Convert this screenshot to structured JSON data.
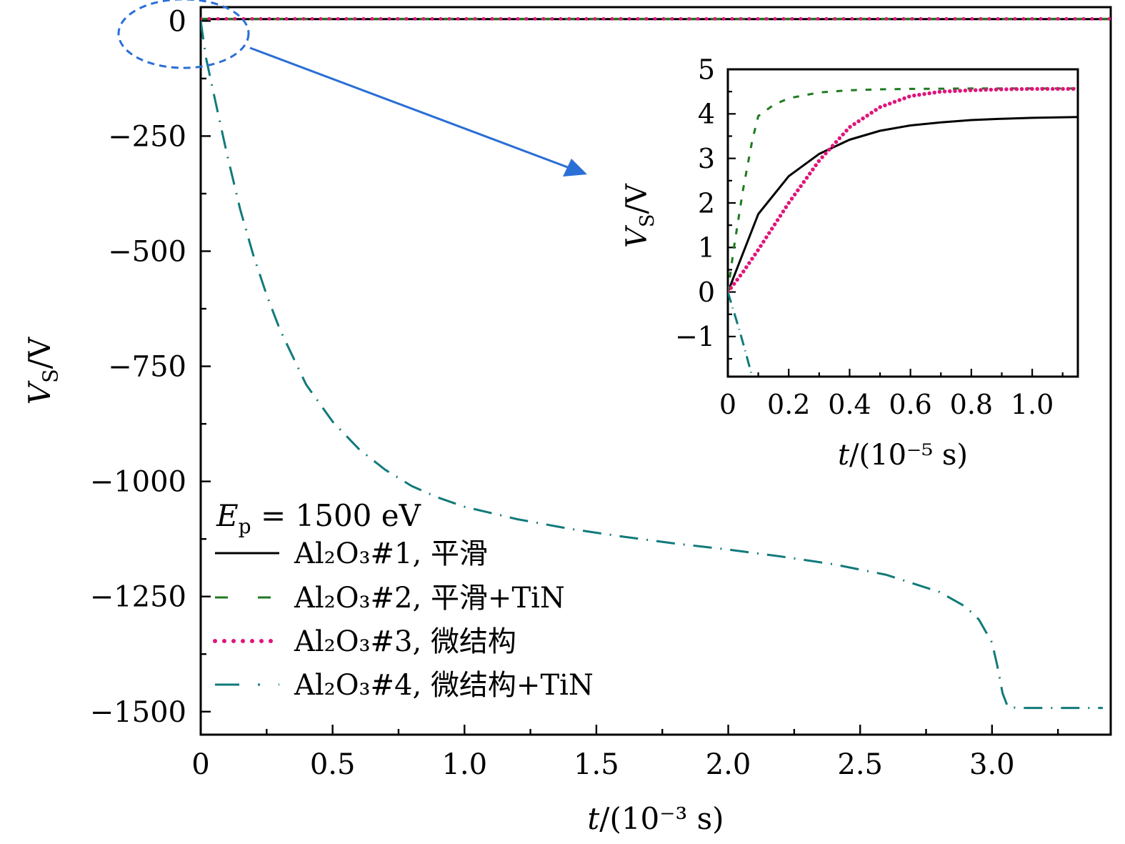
{
  "chart_data": [
    {
      "type": "line",
      "xlabel": "t/(10⁻³ s)",
      "ylabel": "V_S/V",
      "xlim": [
        0,
        3.45
      ],
      "ylim": [
        -1550,
        30
      ],
      "xticks": [
        0,
        0.5,
        1.0,
        1.5,
        2.0,
        2.5,
        3.0
      ],
      "xtick_labels": [
        "0",
        "0.5",
        "1.0",
        "1.5",
        "2.0",
        "2.5",
        "3.0"
      ],
      "yticks": [
        0,
        -250,
        -500,
        -750,
        -1000,
        -1250,
        -1500
      ],
      "ytick_labels": [
        "0",
        "−250",
        "−500",
        "−750",
        "−1000",
        "−1250",
        "−1500"
      ],
      "grid": false,
      "legend_title": "E_p = 1500 eV",
      "legend_placement": "bottom-left",
      "series": [
        {
          "name": "Al₂O₃#1, 平滑",
          "color": "#000000",
          "style": "solid",
          "x": [
            0,
            0.5,
            1.0,
            1.5,
            2.0,
            2.5,
            3.0,
            3.45
          ],
          "y": [
            4,
            4,
            4,
            4,
            4,
            4,
            4,
            4
          ]
        },
        {
          "name": "Al₂O₃#2, 平滑+TiN",
          "color": "#1f7a1f",
          "style": "dashed",
          "x": [
            0,
            0.5,
            1.0,
            1.5,
            2.0,
            2.5,
            3.0,
            3.45
          ],
          "y": [
            4.6,
            4.6,
            4.6,
            4.6,
            4.6,
            4.6,
            4.6,
            4.6
          ]
        },
        {
          "name": "Al₂O₃#3, 微结构",
          "color": "#e0147a",
          "style": "dotted",
          "x": [
            0,
            0.5,
            1.0,
            1.5,
            2.0,
            2.5,
            3.0,
            3.45
          ],
          "y": [
            4.5,
            4.5,
            4.5,
            4.5,
            4.5,
            4.5,
            4.5,
            4.5
          ]
        },
        {
          "name": "Al₂O₃#4, 微结构+TiN",
          "color": "#117a7a",
          "style": "dashdot",
          "x": [
            0,
            0.02,
            0.05,
            0.1,
            0.15,
            0.2,
            0.25,
            0.3,
            0.4,
            0.5,
            0.6,
            0.7,
            0.8,
            0.9,
            1.0,
            1.2,
            1.4,
            1.6,
            1.8,
            2.0,
            2.2,
            2.4,
            2.6,
            2.8,
            2.9,
            2.95,
            3.0,
            3.02,
            3.04,
            3.06,
            3.1,
            3.2,
            3.3,
            3.42
          ],
          "y": [
            0,
            -80,
            -160,
            -290,
            -410,
            -510,
            -595,
            -670,
            -790,
            -870,
            -930,
            -975,
            -1010,
            -1035,
            -1055,
            -1082,
            -1103,
            -1120,
            -1135,
            -1148,
            -1163,
            -1180,
            -1203,
            -1240,
            -1272,
            -1300,
            -1350,
            -1400,
            -1460,
            -1490,
            -1492,
            -1492,
            -1492,
            -1492
          ]
        }
      ]
    },
    {
      "type": "line",
      "xlabel": "t/(10⁻⁵ s)",
      "ylabel": "V_S/V",
      "xlim": [
        0,
        1.15
      ],
      "ylim": [
        -1.9,
        5
      ],
      "xticks": [
        0,
        0.2,
        0.4,
        0.6,
        0.8,
        1.0
      ],
      "xtick_labels": [
        "0",
        "0.2",
        "0.4",
        "0.6",
        "0.8",
        "1.0"
      ],
      "yticks": [
        -1,
        0,
        1,
        2,
        3,
        4,
        5
      ],
      "ytick_labels": [
        "−1",
        "0",
        "1",
        "2",
        "3",
        "4",
        "5"
      ],
      "grid": false,
      "series": [
        {
          "name": "Al₂O₃#1, 平滑",
          "color": "#000000",
          "style": "solid",
          "x": [
            0,
            0.1,
            0.2,
            0.3,
            0.4,
            0.5,
            0.6,
            0.7,
            0.8,
            0.9,
            1.0,
            1.15
          ],
          "y": [
            0,
            1.75,
            2.6,
            3.1,
            3.42,
            3.62,
            3.74,
            3.81,
            3.86,
            3.89,
            3.91,
            3.93
          ]
        },
        {
          "name": "Al₂O₃#2, 平滑+TiN",
          "color": "#1f7a1f",
          "style": "dashed",
          "x": [
            0,
            0.02,
            0.05,
            0.08,
            0.1,
            0.15,
            0.2,
            0.3,
            0.4,
            0.5,
            0.6,
            0.8,
            1.0,
            1.15
          ],
          "y": [
            0,
            1.0,
            2.3,
            3.4,
            3.95,
            4.2,
            4.35,
            4.48,
            4.53,
            4.55,
            4.56,
            4.57,
            4.57,
            4.57
          ]
        },
        {
          "name": "Al₂O₃#3, 微结构",
          "color": "#e0147a",
          "style": "dotted",
          "x": [
            0,
            0.05,
            0.1,
            0.2,
            0.3,
            0.4,
            0.5,
            0.6,
            0.7,
            0.8,
            0.9,
            1.0,
            1.15
          ],
          "y": [
            0,
            0.45,
            0.95,
            2.0,
            2.95,
            3.7,
            4.15,
            4.4,
            4.5,
            4.53,
            4.55,
            4.56,
            4.56
          ]
        },
        {
          "name": "Al₂O₃#4, 微结构+TiN",
          "color": "#117a7a",
          "style": "dashdot",
          "x": [
            0,
            0.02,
            0.04,
            0.06,
            0.08
          ],
          "y": [
            0,
            -0.45,
            -0.9,
            -1.4,
            -1.9
          ]
        }
      ]
    }
  ]
}
